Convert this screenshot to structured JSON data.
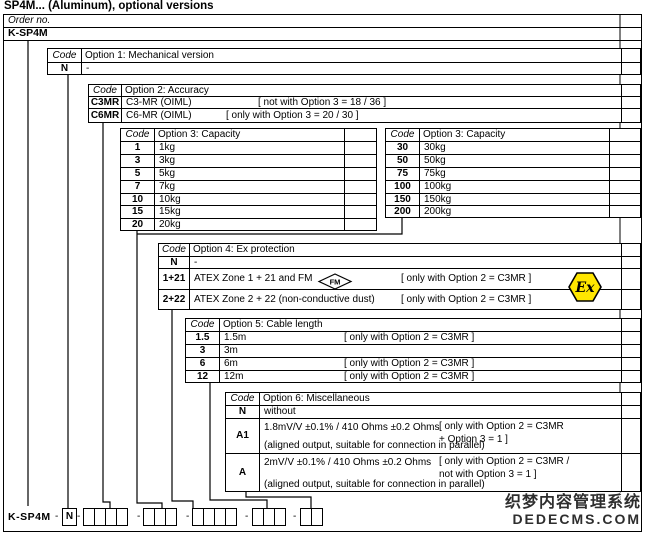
{
  "title": "SP4M... (Aluminum), optional versions",
  "order_row": {
    "label": "Order no."
  },
  "product_row": {
    "label": "K-SP4M"
  },
  "tables": {
    "option1": {
      "code_header": "Code",
      "title": "Option 1: Mechanical version",
      "rows": [
        {
          "code": "N",
          "desc": "-"
        }
      ]
    },
    "option2": {
      "code_header": "Code",
      "title": "Option 2: Accuracy",
      "rows": [
        {
          "code": "C3MR",
          "desc": "C3-MR (OIML)",
          "condition": "[ not with Option 3 = 18 / 36 ]"
        },
        {
          "code": "C6MR",
          "desc": "C6-MR (OIML)",
          "condition": "[ only with Option 3 = 20 / 30 ]"
        }
      ]
    },
    "option3a": {
      "code_header": "Code",
      "title": "Option 3: Capacity",
      "rows": [
        {
          "code": "1",
          "desc": "1kg"
        },
        {
          "code": "3",
          "desc": "3kg"
        },
        {
          "code": "5",
          "desc": "5kg"
        },
        {
          "code": "7",
          "desc": "7kg"
        },
        {
          "code": "10",
          "desc": "10kg"
        },
        {
          "code": "15",
          "desc": "15kg"
        },
        {
          "code": "20",
          "desc": "20kg"
        }
      ]
    },
    "option3b": {
      "code_header": "Code",
      "title": "Option 3: Capacity",
      "rows": [
        {
          "code": "30",
          "desc": "30kg"
        },
        {
          "code": "50",
          "desc": "50kg"
        },
        {
          "code": "75",
          "desc": "75kg"
        },
        {
          "code": "100",
          "desc": "100kg"
        },
        {
          "code": "150",
          "desc": "150kg"
        },
        {
          "code": "200",
          "desc": "200kg"
        }
      ]
    },
    "option4": {
      "code_header": "Code",
      "title": "Option 4: Ex protection",
      "rows": [
        {
          "code": "N",
          "desc": "-"
        },
        {
          "code": "1+21",
          "desc": "ATEX Zone 1 + 21 and FM",
          "logo": "fm",
          "condition": "[ only with Option 2 = C3MR ]"
        },
        {
          "code": "2+22",
          "desc": "ATEX Zone 2 + 22 (non-conductive dust)",
          "condition": "[ only with Option 2 = C3MR ]"
        }
      ]
    },
    "option5": {
      "code_header": "Code",
      "title": "Option 5: Cable length",
      "rows": [
        {
          "code": "1.5",
          "desc": "1.5m",
          "condition": "[ only with Option 2 = C3MR ]"
        },
        {
          "code": "3",
          "desc": "3m"
        },
        {
          "code": "6",
          "desc": "6m",
          "condition": "[ only with Option 2 = C3MR ]"
        },
        {
          "code": "12",
          "desc": "12m",
          "condition": "[ only with Option 2 = C3MR ]"
        }
      ]
    },
    "option6": {
      "code_header": "Code",
      "title": "Option 6: Miscellaneous",
      "rows": [
        {
          "code": "N",
          "desc": "without"
        },
        {
          "code": "A1",
          "desc": "1.8mV/V ±0.1% / 410 Ohms ±0.2 Ohms",
          "condition_lines": [
            "[ only with Option 2 = C3MR",
            "+  Option 3 = 1 ]"
          ],
          "desc2": "(aligned output, suitable for connection in parallel)"
        },
        {
          "code": "A",
          "desc": "2mV/V ±0.1% / 410 Ohms ±0.2 Ohms",
          "condition_lines": [
            "[ only with Option 2 = C3MR /",
            "not with Option 3 = 1 ]"
          ],
          "desc2": "(aligned output, suitable for connection in parallel)"
        }
      ]
    }
  },
  "order_code": {
    "prefix": "K-SP4M",
    "separator": "-",
    "fixed_code": "N",
    "groups": [
      4,
      3,
      4,
      3,
      2
    ]
  },
  "symbols": {
    "ex_label": "Ex",
    "ex_color": "#ffe600",
    "fm_label": "FM"
  },
  "watermark": {
    "line1": "织梦内容管理系统",
    "line2": "DEDECMS.COM"
  }
}
